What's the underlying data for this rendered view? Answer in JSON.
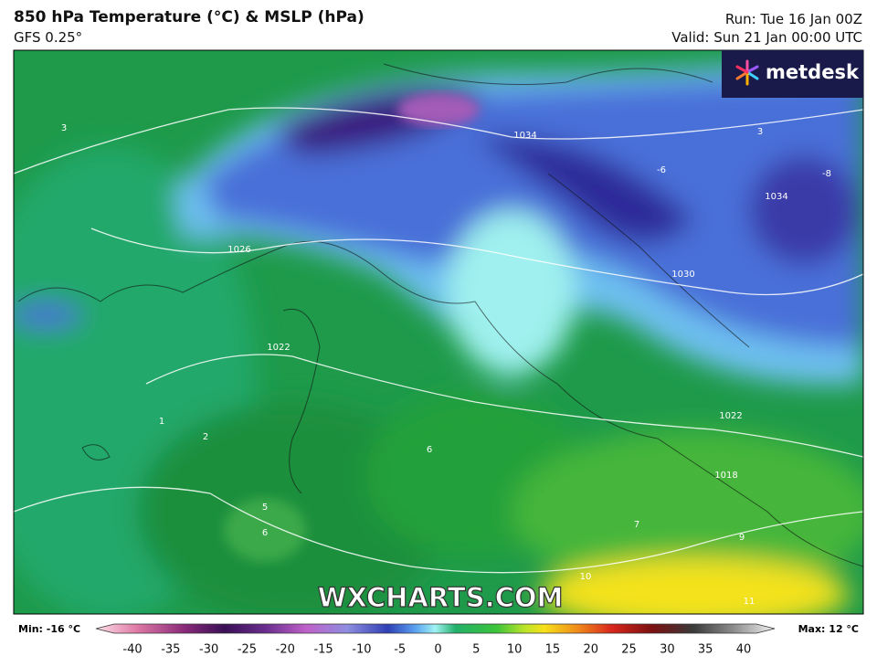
{
  "header": {
    "title": "850 hPa Temperature (°C) & MSLP (hPa)",
    "model": "GFS 0.25°",
    "run": "Run: Tue 16 Jan 00Z",
    "valid": "Valid: Sun 21 Jan 00:00 UTC"
  },
  "logo": "metdesk",
  "watermark": "WXCHARTS.COM",
  "map": {
    "labels": [
      "1034",
      "1030",
      "1026",
      "1022",
      "1018",
      "1022",
      "1034",
      "10",
      "11",
      "6",
      "5",
      "6",
      "7",
      "9",
      "3",
      "3",
      "-6",
      "-8",
      "1",
      "2"
    ]
  },
  "colorbar": {
    "min": "Min: -16 °C",
    "max": "Max: 12 °C",
    "ticks": [
      -40,
      -35,
      -30,
      -25,
      -20,
      -15,
      -10,
      -5,
      0,
      5,
      10,
      15,
      20,
      25,
      30,
      35,
      40
    ]
  }
}
